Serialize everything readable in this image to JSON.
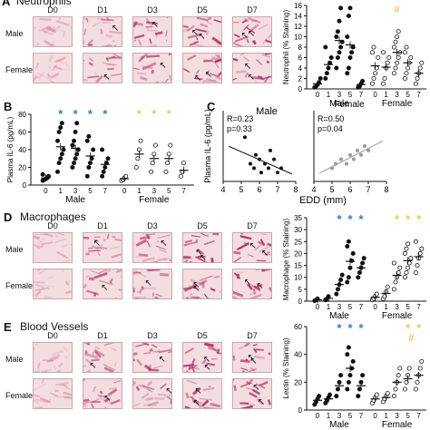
{
  "panels": {
    "A": {
      "letter": "A",
      "title": "Neutrophils",
      "days": [
        "D0",
        "D1",
        "D3",
        "D5",
        "D7"
      ],
      "rows": [
        "Male",
        "Female"
      ]
    },
    "B": {
      "letter": "B"
    },
    "C": {
      "letter": "C"
    },
    "D": {
      "letter": "D",
      "title": "Macrophages",
      "days": [
        "D0",
        "D1",
        "D3",
        "D5",
        "D7"
      ],
      "rows": [
        "Male",
        "Female"
      ]
    },
    "E": {
      "letter": "E",
      "title": "Blood Vessels",
      "days": [
        "D0",
        "D1",
        "D3",
        "D5",
        "D7"
      ],
      "rows": [
        "Male",
        "Female"
      ]
    }
  },
  "colors": {
    "tissue_light": "#efd8dc",
    "tissue_dark": "#c8587a",
    "male_star": "#2a7bd3",
    "female_star": "#f2c84b",
    "female_hash": "#f2c84b"
  },
  "chart_data": [
    {
      "id": "neutrophil",
      "type": "scatter",
      "ylabel": "Neutrophil (% Staining)",
      "ylim": [
        0,
        16
      ],
      "yticks": [
        "0",
        "2",
        "4",
        "6",
        "8",
        "10",
        "12",
        "14",
        "16"
      ],
      "categories": [
        "0",
        "1",
        "3",
        "5",
        "7",
        "0",
        "1",
        "3",
        "5",
        "7"
      ],
      "groups": [
        "Male",
        "Female"
      ],
      "annotations": [
        "#"
      ],
      "series": [
        {
          "group": "Male",
          "x": "0",
          "values": [
            0.3,
            0.5,
            0.8,
            1.2,
            2.0
          ]
        },
        {
          "group": "Male",
          "x": "1",
          "values": [
            2,
            3,
            4,
            5,
            6,
            8
          ]
        },
        {
          "group": "Male",
          "x": "3",
          "values": [
            4,
            6,
            7,
            8,
            9,
            10,
            11,
            13,
            15.5
          ]
        },
        {
          "group": "Male",
          "x": "5",
          "values": [
            3,
            4,
            6,
            7,
            8,
            10,
            14,
            15.5
          ]
        },
        {
          "group": "Male",
          "x": "7",
          "values": [
            0.3,
            0.5,
            1,
            1.5
          ]
        },
        {
          "group": "Female",
          "x": "0",
          "values": [
            1,
            2,
            3,
            4,
            6,
            7,
            8
          ]
        },
        {
          "group": "Female",
          "x": "1",
          "values": [
            1,
            2,
            4,
            5,
            6,
            7
          ]
        },
        {
          "group": "Female",
          "x": "3",
          "values": [
            3,
            4,
            5,
            6,
            7,
            8,
            9,
            10,
            11
          ]
        },
        {
          "group": "Female",
          "x": "5",
          "values": [
            2,
            3,
            4,
            5,
            6,
            7,
            8
          ]
        },
        {
          "group": "Female",
          "x": "7",
          "values": [
            1,
            2,
            3,
            4,
            5
          ]
        }
      ]
    },
    {
      "id": "il6",
      "type": "scatter",
      "ylabel": "Plasma IL-6 (pg/mL)",
      "ylim": [
        0,
        80
      ],
      "yticks": [
        "0",
        "20",
        "40",
        "60",
        "80"
      ],
      "categories": [
        "0",
        "1",
        "3",
        "5",
        "7",
        "0",
        "1",
        "3",
        "5",
        "7"
      ],
      "groups": [
        "Male",
        "Female"
      ],
      "series": [
        {
          "group": "Male",
          "x": "0",
          "values": [
            5,
            6,
            7,
            8,
            10,
            12
          ]
        },
        {
          "group": "Male",
          "x": "1",
          "values": [
            15,
            25,
            30,
            35,
            40,
            50,
            60,
            65,
            70
          ]
        },
        {
          "group": "Male",
          "x": "3",
          "values": [
            20,
            25,
            30,
            35,
            40,
            45,
            50,
            60,
            70
          ]
        },
        {
          "group": "Male",
          "x": "5",
          "values": [
            10,
            20,
            25,
            30,
            40,
            50,
            55
          ]
        },
        {
          "group": "Male",
          "x": "7",
          "values": [
            10,
            15,
            20,
            25,
            30,
            40
          ]
        },
        {
          "group": "Female",
          "x": "0",
          "values": [
            5,
            6,
            8,
            10
          ]
        },
        {
          "group": "Female",
          "x": "1",
          "values": [
            20,
            30,
            40,
            50
          ]
        },
        {
          "group": "Female",
          "x": "3",
          "values": [
            15,
            25,
            35,
            45
          ]
        },
        {
          "group": "Female",
          "x": "5",
          "values": [
            15,
            25,
            35,
            45
          ]
        },
        {
          "group": "Female",
          "x": "7",
          "values": [
            10,
            15,
            25
          ]
        }
      ]
    },
    {
      "id": "corr_male",
      "type": "scatter",
      "title": "Male",
      "ylabel": "Plasma IL-6 (pg/mL)",
      "xlabel": "",
      "xlim": [
        4,
        8
      ],
      "xticks": [
        "4",
        "5",
        "6",
        "7",
        "8"
      ],
      "R": "R=0.23",
      "p": "p=0.33",
      "points": [
        [
          5.2,
          50
        ],
        [
          5.5,
          20
        ],
        [
          5.7,
          15
        ],
        [
          5.8,
          30
        ],
        [
          6.0,
          25
        ],
        [
          6.1,
          10
        ],
        [
          6.3,
          20
        ],
        [
          6.5,
          15
        ],
        [
          6.6,
          35
        ],
        [
          6.8,
          25
        ],
        [
          7.0,
          10
        ],
        [
          7.2,
          15
        ]
      ]
    },
    {
      "id": "corr_female",
      "type": "scatter",
      "xlabel": "EDD (mm)",
      "xlim": [
        4,
        8
      ],
      "xticks": [
        "4",
        "5",
        "6",
        "7",
        "8"
      ],
      "R": "R=0.50",
      "p": "p=0.04",
      "points": [
        [
          5.0,
          15
        ],
        [
          5.2,
          20
        ],
        [
          5.5,
          25
        ],
        [
          5.8,
          20
        ],
        [
          6.0,
          30
        ],
        [
          6.2,
          25
        ],
        [
          6.4,
          35
        ],
        [
          6.6,
          30
        ],
        [
          6.8,
          40
        ],
        [
          7.0,
          35
        ]
      ]
    },
    {
      "id": "macrophage",
      "type": "scatter",
      "ylabel": "Macrophage (% Staining)",
      "ylim": [
        0,
        35
      ],
      "yticks": [
        "0",
        "5",
        "10",
        "15",
        "20",
        "25",
        "30",
        "35"
      ],
      "categories": [
        "0",
        "1",
        "3",
        "5",
        "7",
        "0",
        "1",
        "3",
        "5",
        "7"
      ],
      "groups": [
        "Male",
        "Female"
      ],
      "series": [
        {
          "group": "Male",
          "x": "0",
          "values": [
            0.2,
            0.5,
            1
          ]
        },
        {
          "group": "Male",
          "x": "1",
          "values": [
            0.5,
            1,
            2
          ]
        },
        {
          "group": "Male",
          "x": "3",
          "values": [
            3,
            5,
            7,
            9,
            11
          ]
        },
        {
          "group": "Male",
          "x": "5",
          "values": [
            8,
            10,
            14,
            17,
            20,
            23,
            25
          ]
        },
        {
          "group": "Male",
          "x": "7",
          "values": [
            10,
            12,
            14,
            16,
            18
          ]
        },
        {
          "group": "Female",
          "x": "0",
          "values": [
            0.5,
            1,
            2,
            3
          ]
        },
        {
          "group": "Female",
          "x": "1",
          "values": [
            1,
            2,
            4,
            6
          ]
        },
        {
          "group": "Female",
          "x": "3",
          "values": [
            5,
            8,
            10,
            12,
            14,
            16
          ]
        },
        {
          "group": "Female",
          "x": "5",
          "values": [
            10,
            12,
            14,
            16,
            18,
            20,
            22,
            24
          ]
        },
        {
          "group": "Female",
          "x": "7",
          "values": [
            12,
            15,
            18,
            20,
            22,
            25
          ]
        }
      ]
    },
    {
      "id": "lectin",
      "type": "scatter",
      "ylabel": "Lectin (% Staining)",
      "ylim": [
        0,
        60
      ],
      "yticks": [
        "0",
        "20",
        "40",
        "60"
      ],
      "categories": [
        "0",
        "1",
        "3",
        "5",
        "7",
        "0",
        "1",
        "3",
        "5",
        "7"
      ],
      "groups": [
        "Male",
        "Female"
      ],
      "annotations": [
        "#"
      ],
      "series": [
        {
          "group": "Male",
          "x": "0",
          "values": [
            4,
            6,
            8,
            10
          ]
        },
        {
          "group": "Male",
          "x": "1",
          "values": [
            5,
            7,
            9,
            11
          ]
        },
        {
          "group": "Male",
          "x": "3",
          "values": [
            10,
            15,
            20,
            25
          ]
        },
        {
          "group": "Male",
          "x": "5",
          "values": [
            15,
            20,
            25,
            30,
            35,
            40,
            45
          ]
        },
        {
          "group": "Male",
          "x": "7",
          "values": [
            10,
            15,
            20,
            25
          ]
        },
        {
          "group": "Female",
          "x": "0",
          "values": [
            5,
            7,
            9,
            11
          ]
        },
        {
          "group": "Female",
          "x": "1",
          "values": [
            6,
            8,
            10,
            12
          ]
        },
        {
          "group": "Female",
          "x": "3",
          "values": [
            10,
            15,
            20,
            25,
            30
          ]
        },
        {
          "group": "Female",
          "x": "5",
          "values": [
            15,
            20,
            25,
            30
          ]
        },
        {
          "group": "Female",
          "x": "7",
          "values": [
            15,
            20,
            25,
            30,
            35
          ]
        }
      ]
    }
  ],
  "stars": {
    "B_male": [
      "*",
      "*",
      "*",
      "*"
    ],
    "B_female": [
      "*",
      "*",
      "*"
    ],
    "D_male": [
      "*",
      "*",
      "*"
    ],
    "D_female": [
      "*",
      "*",
      "*"
    ],
    "E_male": [
      "*",
      "*",
      "*"
    ],
    "E_female": [
      "*",
      "*"
    ]
  },
  "male_label": "Male",
  "female_label": "Female",
  "edd_label": "EDD (mm)"
}
